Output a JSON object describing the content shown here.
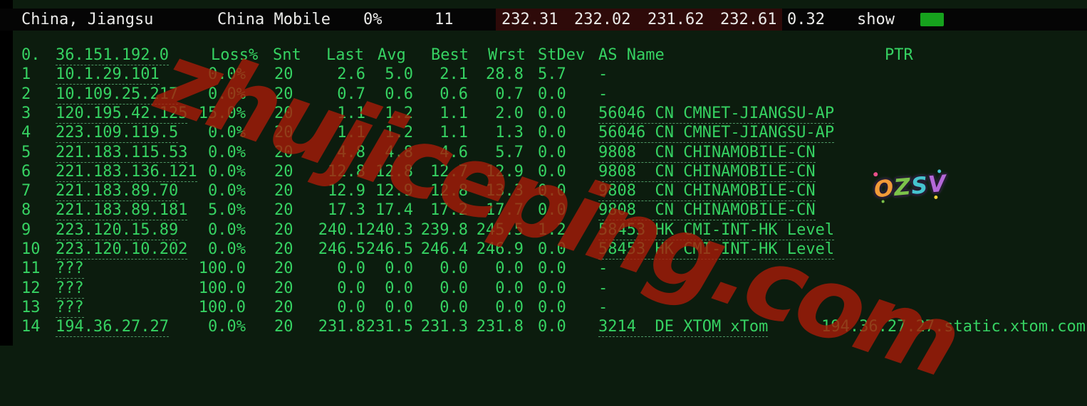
{
  "summary": {
    "location": "China, Jiangsu",
    "provider": "China Mobile",
    "loss": "0%",
    "count": "11",
    "latencies": [
      "232.31",
      "232.02",
      "231.62",
      "232.61"
    ],
    "stdev": "0.32",
    "show_label": "show"
  },
  "table": {
    "headers": {
      "hop": "0.",
      "host": "36.151.192.0",
      "loss": "Loss%",
      "snt": "Snt",
      "last": "Last",
      "avg": "Avg",
      "best": "Best",
      "wrst": "Wrst",
      "stdev": "StDev",
      "asname": "AS Name",
      "ptr": "PTR"
    },
    "rows": [
      {
        "hop": "1",
        "host": "10.1.29.101",
        "loss": "0.0%",
        "snt": "20",
        "last": "2.6",
        "avg": "5.0",
        "best": "2.1",
        "wrst": "28.8",
        "stdev": "5.7",
        "asn": "-",
        "asn_link": false,
        "ptr": ""
      },
      {
        "hop": "2",
        "host": "10.109.25.217",
        "loss": "0.0%",
        "snt": "20",
        "last": "0.7",
        "avg": "0.6",
        "best": "0.6",
        "wrst": "0.7",
        "stdev": "0.0",
        "asn": "-",
        "asn_link": false,
        "ptr": ""
      },
      {
        "hop": "3",
        "host": "120.195.42.125",
        "loss": "15.0%",
        "snt": "20",
        "last": "1.1",
        "avg": "1.2",
        "best": "1.1",
        "wrst": "2.0",
        "stdev": "0.0",
        "asn": "56046 CN CMNET-JIANGSU-AP",
        "asn_link": true,
        "ptr": ""
      },
      {
        "hop": "4",
        "host": "223.109.119.5",
        "loss": "0.0%",
        "snt": "20",
        "last": "1.1",
        "avg": "1.2",
        "best": "1.1",
        "wrst": "1.3",
        "stdev": "0.0",
        "asn": "56046 CN CMNET-JIANGSU-AP",
        "asn_link": true,
        "ptr": ""
      },
      {
        "hop": "5",
        "host": "221.183.115.53",
        "loss": "0.0%",
        "snt": "20",
        "last": "4.8",
        "avg": "4.8",
        "best": "4.6",
        "wrst": "5.7",
        "stdev": "0.0",
        "asn": "9808  CN CHINAMOBILE-CN",
        "asn_link": true,
        "ptr": ""
      },
      {
        "hop": "6",
        "host": "221.183.136.121",
        "loss": "0.0%",
        "snt": "20",
        "last": "12.8",
        "avg": "12.8",
        "best": "12.7",
        "wrst": "12.9",
        "stdev": "0.0",
        "asn": "9808  CN CHINAMOBILE-CN",
        "asn_link": true,
        "ptr": ""
      },
      {
        "hop": "7",
        "host": "221.183.89.70",
        "loss": "0.0%",
        "snt": "20",
        "last": "12.9",
        "avg": "12.9",
        "best": "12.8",
        "wrst": "13.3",
        "stdev": "0.0",
        "asn": "9808  CN CHINAMOBILE-CN",
        "asn_link": true,
        "ptr": ""
      },
      {
        "hop": "8",
        "host": "221.183.89.181",
        "loss": "5.0%",
        "snt": "20",
        "last": "17.3",
        "avg": "17.4",
        "best": "17.2",
        "wrst": "17.7",
        "stdev": "0.0",
        "asn": "9808  CN CHINAMOBILE-CN",
        "asn_link": true,
        "ptr": ""
      },
      {
        "hop": "9",
        "host": "223.120.15.89",
        "loss": "0.0%",
        "snt": "20",
        "last": "240.1",
        "avg": "240.3",
        "best": "239.8",
        "wrst": "245.5",
        "stdev": "1.2",
        "asn": "58453 HK CMI-INT-HK Level",
        "asn_link": true,
        "ptr": ""
      },
      {
        "hop": "10",
        "host": "223.120.10.202",
        "loss": "0.0%",
        "snt": "20",
        "last": "246.5",
        "avg": "246.5",
        "best": "246.4",
        "wrst": "246.9",
        "stdev": "0.0",
        "asn": "58453 HK CMI-INT-HK Level",
        "asn_link": true,
        "ptr": ""
      },
      {
        "hop": "11",
        "host": "???",
        "loss": "100.0",
        "snt": "20",
        "last": "0.0",
        "avg": "0.0",
        "best": "0.0",
        "wrst": "0.0",
        "stdev": "0.0",
        "asn": "-",
        "asn_link": false,
        "ptr": ""
      },
      {
        "hop": "12",
        "host": "???",
        "loss": "100.0",
        "snt": "20",
        "last": "0.0",
        "avg": "0.0",
        "best": "0.0",
        "wrst": "0.0",
        "stdev": "0.0",
        "asn": "-",
        "asn_link": false,
        "ptr": ""
      },
      {
        "hop": "13",
        "host": "???",
        "loss": "100.0",
        "snt": "20",
        "last": "0.0",
        "avg": "0.0",
        "best": "0.0",
        "wrst": "0.0",
        "stdev": "0.0",
        "asn": "-",
        "asn_link": false,
        "ptr": ""
      },
      {
        "hop": "14",
        "host": "194.36.27.27",
        "loss": "0.0%",
        "snt": "20",
        "last": "231.8",
        "avg": "231.5",
        "best": "231.3",
        "wrst": "231.8",
        "stdev": "0.0",
        "asn": "3214  DE XTOM xTom",
        "asn_link": true,
        "ptr": "194.36.27.27.static.xtom.com"
      }
    ]
  },
  "watermark": {
    "text": "zhujiceping.com",
    "color": "#a81b09"
  },
  "sticker": {
    "letters": [
      {
        "ch": "O",
        "color": "#f29b38"
      },
      {
        "ch": "Z",
        "color": "#7cc24a"
      },
      {
        "ch": "S",
        "color": "#45c4cf"
      },
      {
        "ch": "V",
        "color": "#b468d8"
      }
    ]
  },
  "colors": {
    "background": "#0c1c0e",
    "bar_background": "#050505",
    "highlight_red": "#2e0a09",
    "text_green": "#36d262",
    "text_white": "#ebebe9",
    "button_green": "#16a21d"
  }
}
